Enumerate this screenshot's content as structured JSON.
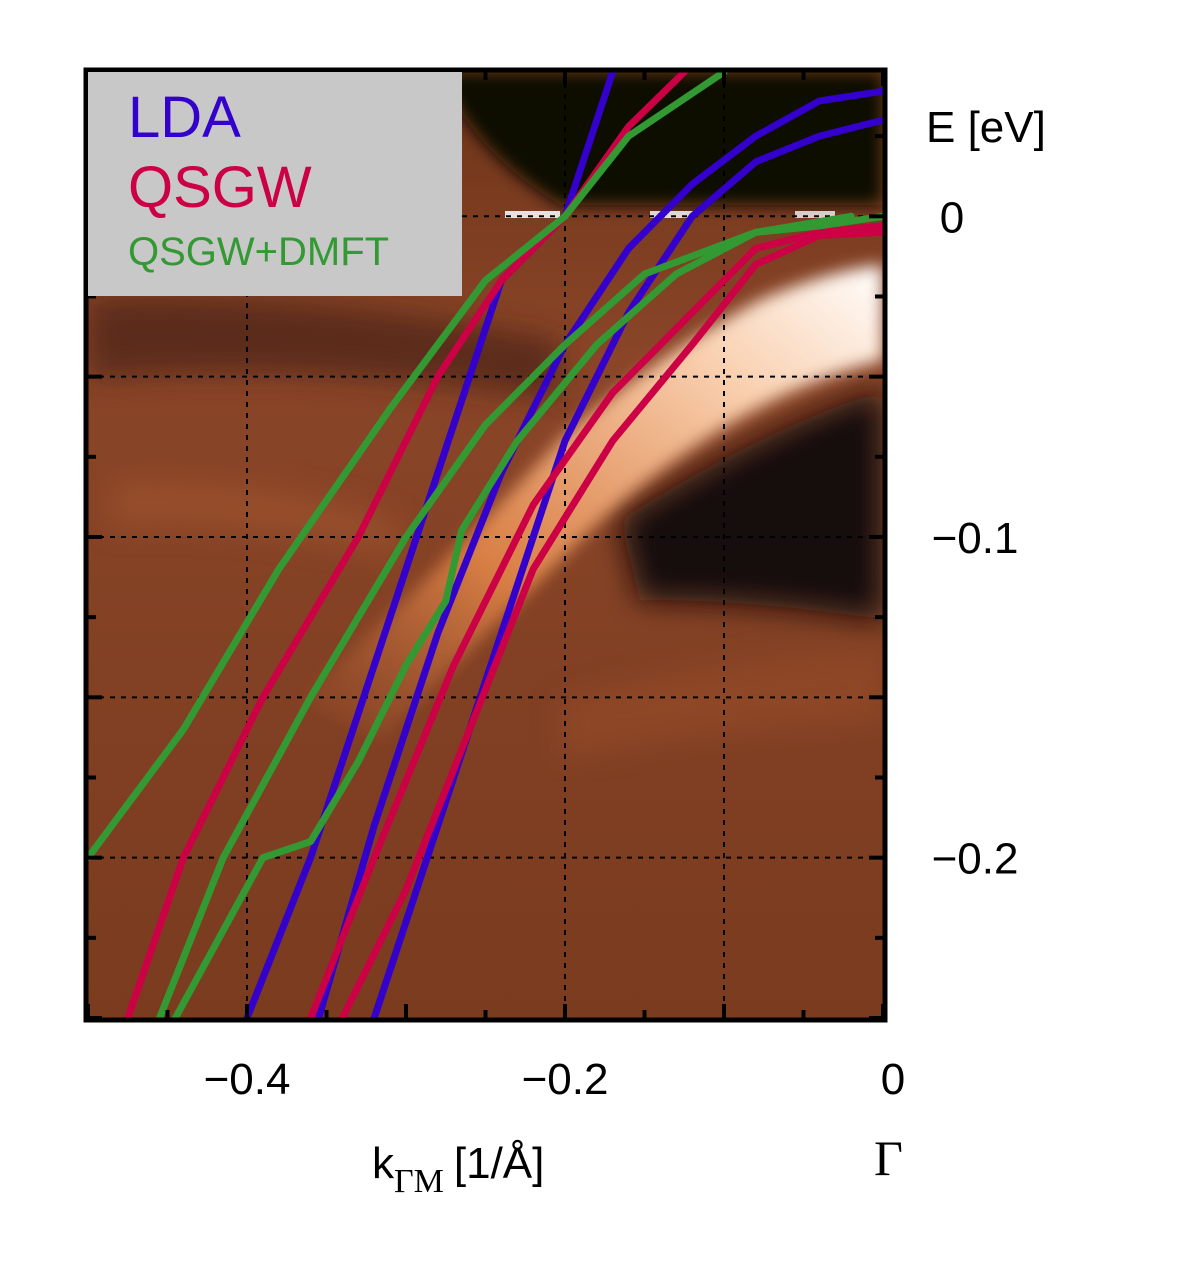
{
  "chart_data": {
    "type": "line",
    "title": "",
    "xlabel_main": "k",
    "xlabel_sub": "ΓM",
    "xlabel_unit": "[1/Å]",
    "xlim": [
      -0.5,
      0.0
    ],
    "ylim": [
      -0.25,
      0.045
    ],
    "ylabel": "E [eV]",
    "x_ticks": [
      -0.4,
      -0.2,
      0.0
    ],
    "x_tick_labels": [
      "−0.4",
      "−0.2",
      "0"
    ],
    "y_ticks": [
      0.0,
      -0.1,
      -0.2
    ],
    "y_tick_labels": [
      "0",
      "−0.1",
      "−0.2"
    ],
    "special_point_label": "Γ",
    "grid": true,
    "background": "ARPES intensity map (copper colormap)",
    "legend_position": "top-left",
    "legend": [
      {
        "name": "LDA",
        "color": "#3300cc"
      },
      {
        "name": "QSGW",
        "color": "#cc0044"
      },
      {
        "name": "QSGW+DMFT",
        "color": "#339933"
      }
    ],
    "series": [
      {
        "name": "LDA",
        "color": "#3300cc",
        "segments": [
          [
            [
              -0.4,
              -0.25
            ],
            [
              -0.36,
              -0.2
            ],
            [
              -0.32,
              -0.14
            ],
            [
              -0.28,
              -0.08
            ],
            [
              -0.24,
              -0.02
            ],
            [
              -0.2,
              0.0
            ],
            [
              -0.17,
              0.045
            ]
          ],
          [
            [
              -0.32,
              -0.25
            ],
            [
              -0.28,
              -0.19
            ],
            [
              -0.24,
              -0.13
            ],
            [
              -0.2,
              -0.07
            ],
            [
              -0.16,
              -0.03
            ],
            [
              -0.12,
              0.0
            ],
            [
              -0.08,
              0.017
            ],
            [
              -0.04,
              0.025
            ],
            [
              0.0,
              0.03
            ]
          ],
          [
            [
              -0.355,
              -0.25
            ],
            [
              -0.32,
              -0.19
            ],
            [
              -0.28,
              -0.13
            ],
            [
              -0.24,
              -0.08
            ],
            [
              -0.2,
              -0.04
            ],
            [
              -0.16,
              -0.01
            ],
            [
              -0.12,
              0.01
            ],
            [
              -0.08,
              0.025
            ],
            [
              -0.04,
              0.036
            ],
            [
              0.0,
              0.039
            ]
          ]
        ]
      },
      {
        "name": "QSGW",
        "color": "#cc0044",
        "segments": [
          [
            [
              -0.475,
              -0.25
            ],
            [
              -0.44,
              -0.2
            ],
            [
              -0.39,
              -0.15
            ],
            [
              -0.33,
              -0.1
            ],
            [
              -0.28,
              -0.05
            ],
            [
              -0.24,
              -0.02
            ],
            [
              -0.2,
              0.0
            ],
            [
              -0.16,
              0.028
            ],
            [
              -0.125,
              0.045
            ]
          ],
          [
            [
              -0.36,
              -0.25
            ],
            [
              -0.32,
              -0.2
            ],
            [
              -0.27,
              -0.14
            ],
            [
              -0.22,
              -0.09
            ],
            [
              -0.17,
              -0.055
            ],
            [
              -0.12,
              -0.03
            ],
            [
              -0.08,
              -0.01
            ],
            [
              -0.04,
              -0.005
            ],
            [
              0.0,
              -0.003
            ]
          ],
          [
            [
              -0.34,
              -0.25
            ],
            [
              -0.3,
              -0.21
            ],
            [
              -0.26,
              -0.16
            ],
            [
              -0.22,
              -0.11
            ],
            [
              -0.17,
              -0.07
            ],
            [
              -0.12,
              -0.04
            ],
            [
              -0.08,
              -0.015
            ],
            [
              -0.04,
              -0.006
            ],
            [
              0.0,
              -0.005
            ]
          ]
        ]
      },
      {
        "name": "QSGW+DMFT",
        "color": "#339933",
        "segments": [
          [
            [
              -0.5,
              -0.2
            ],
            [
              -0.44,
              -0.16
            ],
            [
              -0.38,
              -0.11
            ],
            [
              -0.31,
              -0.06
            ],
            [
              -0.25,
              -0.02
            ],
            [
              -0.2,
              0.0
            ],
            [
              -0.16,
              0.025
            ],
            [
              -0.1,
              0.045
            ]
          ],
          [
            [
              -0.455,
              -0.25
            ],
            [
              -0.415,
              -0.2
            ],
            [
              -0.36,
              -0.15
            ],
            [
              -0.3,
              -0.1
            ],
            [
              -0.25,
              -0.065
            ],
            [
              -0.2,
              -0.04
            ],
            [
              -0.15,
              -0.018
            ],
            [
              -0.08,
              -0.005
            ],
            [
              -0.02,
              0.0
            ]
          ],
          [
            [
              -0.445,
              -0.25
            ],
            [
              -0.39,
              -0.2
            ],
            [
              -0.36,
              -0.195
            ],
            [
              -0.33,
              -0.17
            ],
            [
              -0.3,
              -0.14
            ],
            [
              -0.275,
              -0.12
            ],
            [
              -0.265,
              -0.098
            ],
            [
              -0.23,
              -0.07
            ],
            [
              -0.18,
              -0.04
            ],
            [
              -0.13,
              -0.018
            ],
            [
              -0.08,
              -0.005
            ],
            [
              -0.04,
              -0.003
            ],
            [
              0.0,
              0.0
            ]
          ]
        ]
      }
    ]
  }
}
